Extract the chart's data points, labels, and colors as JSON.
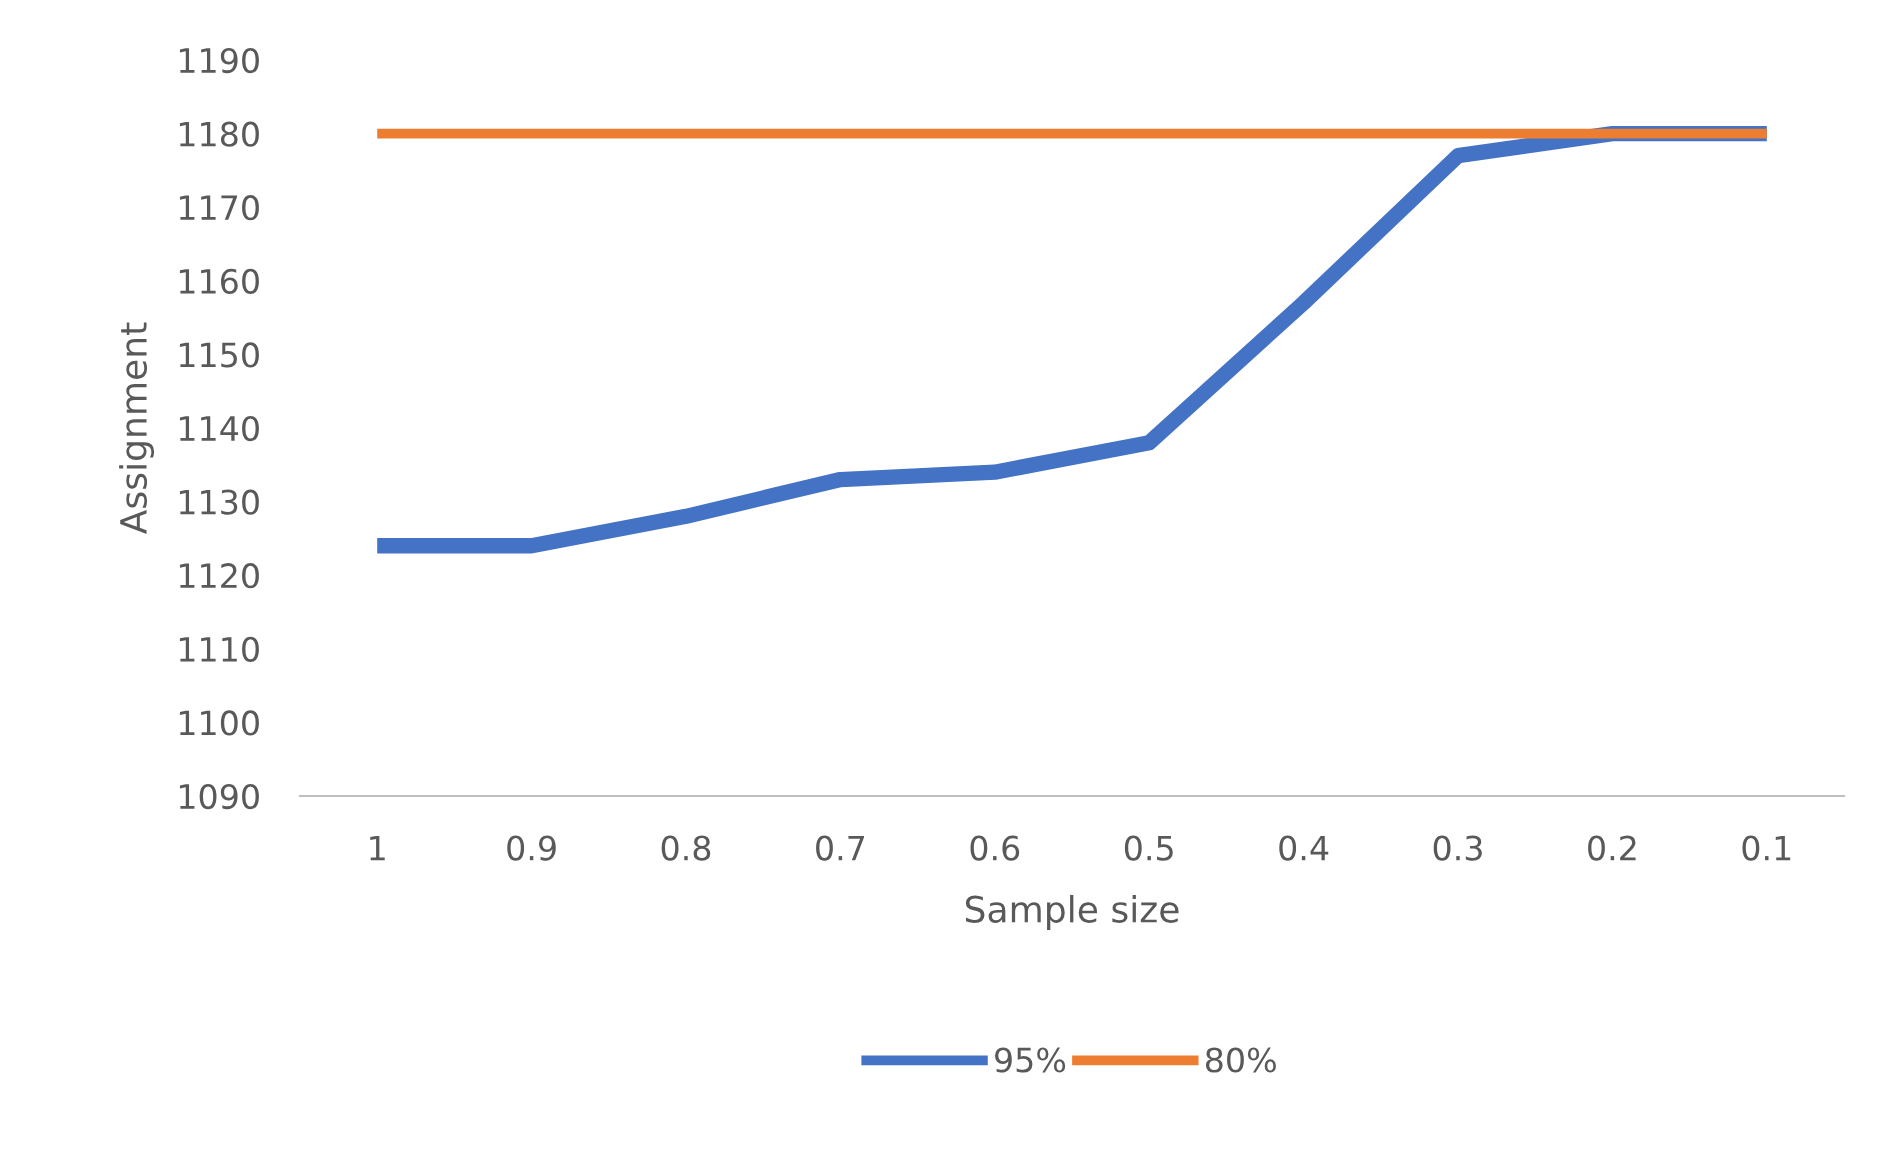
{
  "chart_data": {
    "type": "line",
    "xlabel": "Sample size",
    "ylabel": "Assignment",
    "categories": [
      "1",
      "0.9",
      "0.8",
      "0.7",
      "0.6",
      "0.5",
      "0.4",
      "0.3",
      "0.2",
      "0.1"
    ],
    "series": [
      {
        "name": "95%",
        "color": "#4472c4",
        "values": [
          1124,
          1124,
          1128,
          1133,
          1134,
          1138,
          1157,
          1177,
          1180,
          1180
        ]
      },
      {
        "name": "80%",
        "color": "#ed7d31",
        "values": [
          1180,
          1180,
          1180,
          1180,
          1180,
          1180,
          1180,
          1180,
          1180,
          1180
        ]
      }
    ],
    "ylim": [
      1090,
      1190
    ],
    "yticks": [
      1090,
      1100,
      1110,
      1120,
      1130,
      1140,
      1150,
      1160,
      1170,
      1180,
      1190
    ],
    "grid": false,
    "legend": "bottom",
    "marker": "none",
    "line_style": "solid"
  }
}
